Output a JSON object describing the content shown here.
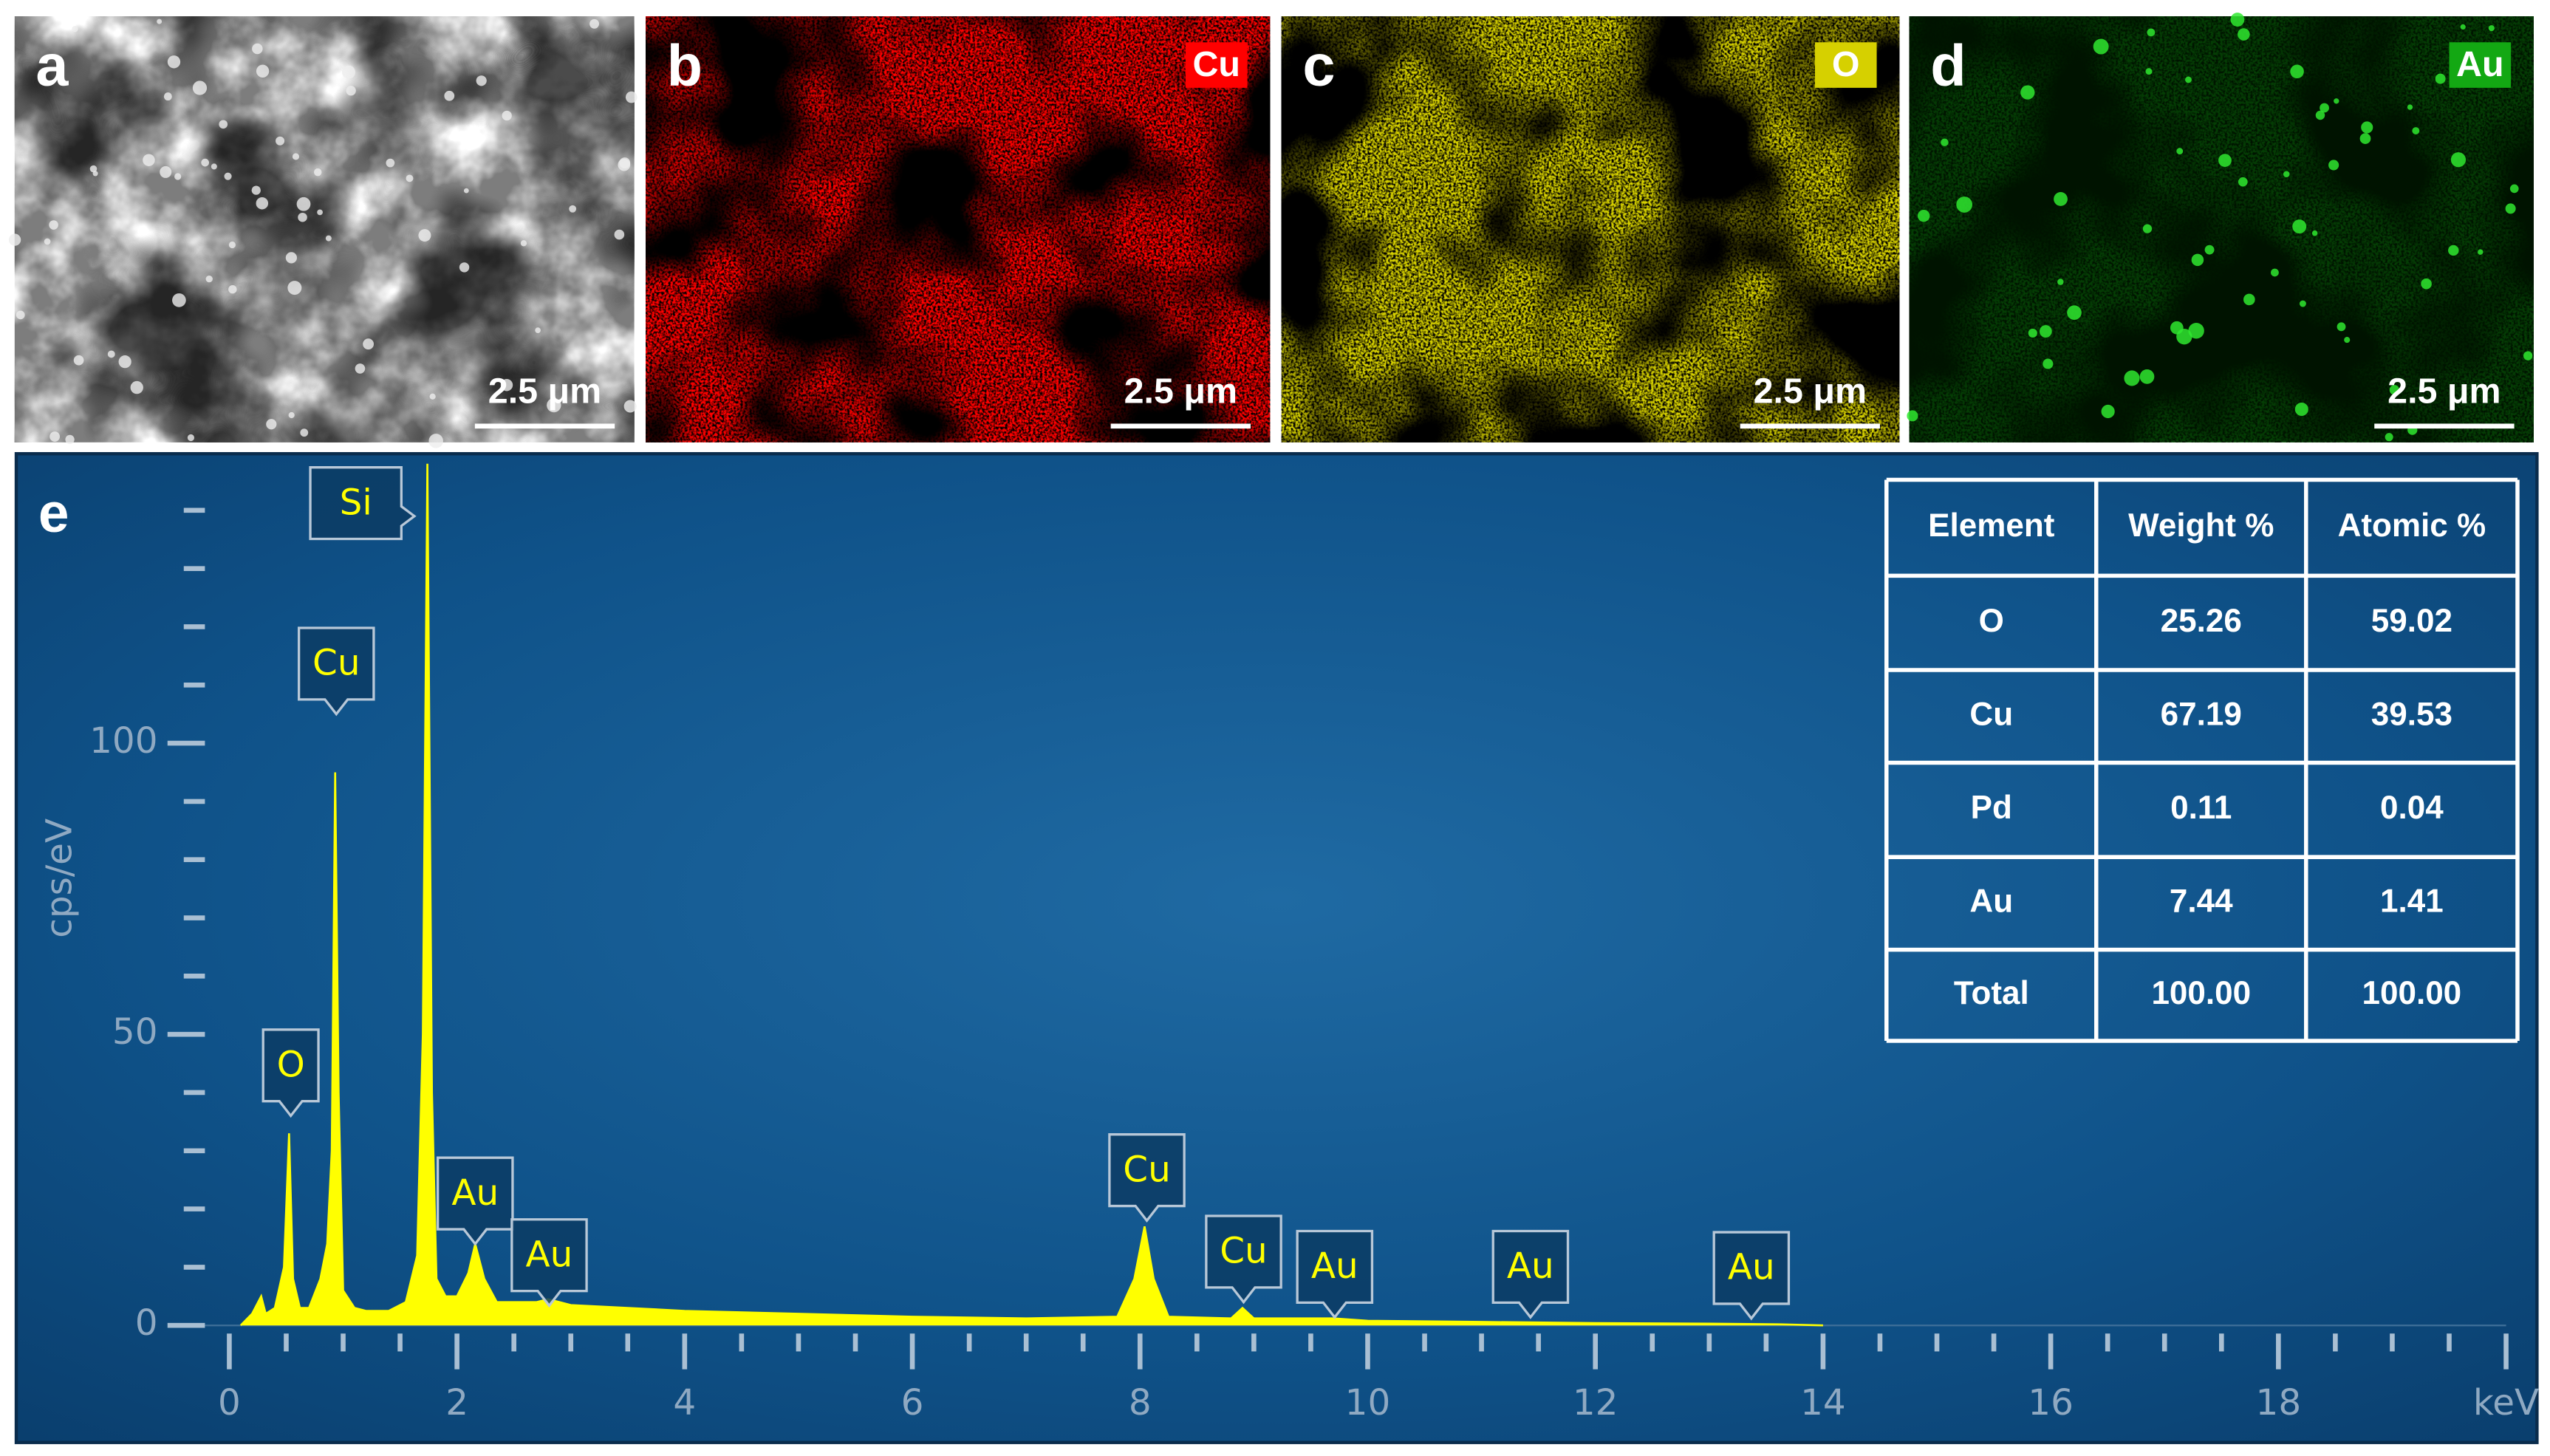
{
  "panels": [
    {
      "label": "a",
      "scale_bar": "2.5 μm",
      "color": "#b8b8b8"
    },
    {
      "label": "b",
      "element": "Cu",
      "scale_bar": "2.5 μm",
      "color": "#ff0000"
    },
    {
      "label": "c",
      "element": "O",
      "scale_bar": "2.5 μm",
      "color": "#d6d000"
    },
    {
      "label": "d",
      "element": "Au",
      "scale_bar": "2.5 μm",
      "color": "#13a813"
    }
  ],
  "chart_data": {
    "type": "area",
    "panel_label": "e",
    "y_label": "cps/eV",
    "color": "#ffff00",
    "x": [
      0.1,
      0.2,
      0.28,
      0.32,
      0.4,
      0.48,
      0.525,
      0.56,
      0.62,
      0.7,
      0.8,
      0.86,
      0.9,
      0.93,
      0.96,
      1.0,
      1.1,
      1.2,
      1.4,
      1.55,
      1.65,
      1.7,
      1.74,
      1.78,
      1.82,
      1.9,
      2.0,
      2.1,
      2.16,
      2.24,
      2.35,
      2.5,
      2.7,
      2.8,
      3.0,
      4.0,
      5.0,
      6.0,
      7.0,
      7.8,
      7.95,
      8.04,
      8.12,
      8.25,
      8.8,
      8.9,
      9.0,
      9.7,
      10,
      11,
      12,
      13,
      13.6,
      14
    ],
    "values": [
      0,
      2,
      5,
      2,
      3,
      10,
      33,
      8,
      3,
      3,
      8,
      14,
      30,
      95,
      40,
      6,
      3,
      2.5,
      2.5,
      4,
      12,
      50,
      148,
      40,
      8,
      5,
      5,
      9,
      14,
      8,
      4,
      4,
      4,
      4.5,
      3.5,
      2.5,
      2,
      1.5,
      1.2,
      1.5,
      8,
      17,
      8,
      1.5,
      1.2,
      3,
      1.2,
      1.2,
      0.8,
      0.6,
      0.4,
      0.3,
      0.2,
      0
    ],
    "xlim": [
      0,
      20
    ],
    "ylim": [
      0,
      150
    ],
    "xticks": [
      0,
      2,
      4,
      6,
      8,
      10,
      12,
      14,
      16,
      18,
      {
        "value": 20,
        "label": "keV"
      }
    ],
    "xminorticks": [
      0.5,
      1,
      1.5,
      2.5,
      3,
      3.5,
      4.5,
      5,
      5.5,
      6.5,
      7,
      7.5,
      8.5,
      9,
      9.5,
      10.5,
      11,
      11.5,
      12.5,
      13,
      13.5,
      14.5,
      15,
      15.5,
      16.5,
      17,
      17.5,
      18.5,
      19,
      19.5
    ],
    "yticks": [
      0,
      50,
      100
    ],
    "yminorticks": [
      10,
      20,
      30,
      40,
      60,
      70,
      80,
      90,
      110,
      120,
      130,
      140
    ],
    "annotations": [
      {
        "text": "O",
        "x": 0.54,
        "y": 36
      },
      {
        "text": "Cu",
        "x": 0.94,
        "y": 105
      },
      {
        "text": "Si",
        "x": 1.74,
        "y": 139
      },
      {
        "text": "Au",
        "x": 2.16,
        "y": 14
      },
      {
        "text": "Au",
        "x": 2.81,
        "y": 3.4
      },
      {
        "text": "Cu",
        "x": 8.06,
        "y": 18
      },
      {
        "text": "Cu",
        "x": 8.91,
        "y": 4
      },
      {
        "text": "Au",
        "x": 9.71,
        "y": 1.4
      },
      {
        "text": "Au",
        "x": 11.43,
        "y": 1.4
      },
      {
        "text": "Au",
        "x": 13.37,
        "y": 1.2
      }
    ]
  },
  "table": {
    "header": [
      "Element",
      "Weight %",
      "Atomic %"
    ],
    "rows": [
      [
        "O",
        "25.26",
        "59.02"
      ],
      [
        "Cu",
        "67.19",
        "39.53"
      ],
      [
        "Pd",
        "0.11",
        "0.04"
      ],
      [
        "Au",
        "7.44",
        "1.41"
      ],
      [
        "Total",
        "100.00",
        "100.00"
      ]
    ]
  }
}
